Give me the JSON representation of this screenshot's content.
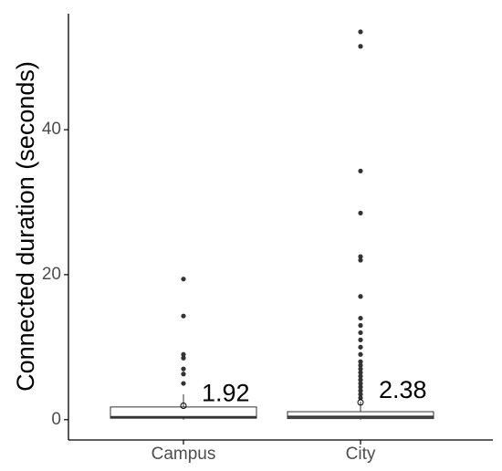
{
  "chart_data": {
    "type": "box",
    "y_label": "Connected duration (seconds)",
    "categories": [
      "Campus",
      "City"
    ],
    "boxes": [
      {
        "whisker_low": 0,
        "q1": 0.2,
        "median": 0.35,
        "q3": 1.75,
        "whisker_high": 3.5,
        "mean": 1.92,
        "outliers": [
          19.4,
          14.3,
          9.0,
          8.5,
          7.0,
          6.3,
          5.0
        ]
      },
      {
        "whisker_low": 0,
        "q1": 0.15,
        "median": 0.4,
        "q3": 1.1,
        "whisker_high": 2.5,
        "mean": 2.38,
        "outliers": [
          53.5,
          51.5,
          34.3,
          28.5,
          22.5,
          22.0,
          17.0,
          14.0,
          13.0,
          12.0,
          11.0,
          10.0,
          9.0,
          8.0,
          7.5,
          7.0,
          6.5,
          6.0,
          5.5,
          5.0,
          4.5,
          4.0,
          3.5,
          3.0
        ]
      }
    ],
    "color": "#333333",
    "ylim": [
      -2.8,
      56
    ],
    "yticks": [
      0,
      20,
      40
    ]
  }
}
